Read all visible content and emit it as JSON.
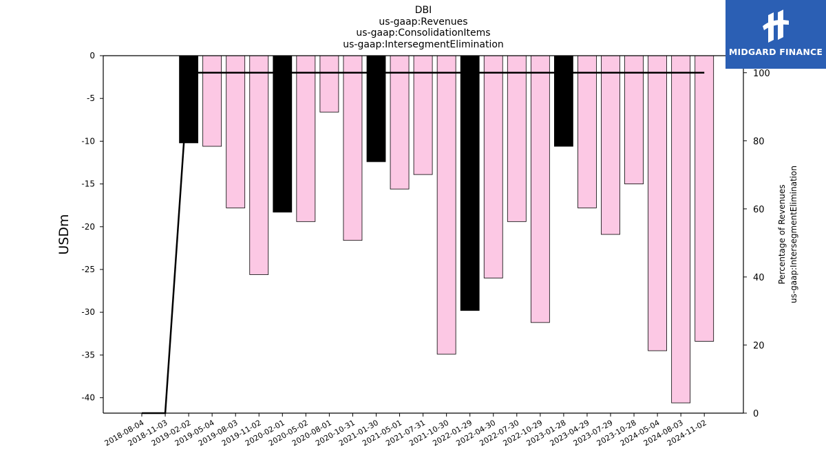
{
  "chart_data": {
    "type": "bar",
    "title_lines": [
      "DBI",
      "us-gaap:Revenues",
      "us-gaap:ConsolidationItems",
      "us-gaap:IntersegmentElimination"
    ],
    "ylabel": "USDm",
    "y2label_lines": [
      "Percentage of Revenues",
      "us-gaap:IntersegmentElimination"
    ],
    "categories": [
      "2018-08-04",
      "2018-11-03",
      "2019-02-02",
      "2019-05-04",
      "2019-08-03",
      "2019-11-02",
      "2020-02-01",
      "2020-05-02",
      "2020-08-01",
      "2020-10-31",
      "2021-01-30",
      "2021-05-01",
      "2021-07-31",
      "2021-10-30",
      "2022-01-29",
      "2022-04-30",
      "2022-07-30",
      "2022-10-29",
      "2023-01-28",
      "2023-04-29",
      "2023-07-29",
      "2023-10-28",
      "2024-05-04",
      "2024-08-03",
      "2024-11-02"
    ],
    "series": [
      {
        "values": [
          null,
          null,
          -10.2,
          -10.6,
          -17.8,
          -25.6,
          -18.3,
          -19.4,
          -6.6,
          -21.6,
          -12.4,
          -15.6,
          -13.9,
          -34.9,
          -29.8,
          -26.0,
          -19.4,
          -31.2,
          -10.6,
          -17.8,
          -20.9,
          -15.0,
          -34.5,
          -40.6,
          -33.4
        ],
        "colors": [
          "",
          "",
          "#000000",
          "#fcc8e4",
          "#fcc8e4",
          "#fcc8e4",
          "#000000",
          "#fcc8e4",
          "#fcc8e4",
          "#fcc8e4",
          "#000000",
          "#fcc8e4",
          "#fcc8e4",
          "#fcc8e4",
          "#000000",
          "#fcc8e4",
          "#fcc8e4",
          "#fcc8e4",
          "#000000",
          "#fcc8e4",
          "#fcc8e4",
          "#fcc8e4",
          "#fcc8e4",
          "#fcc8e4",
          "#fcc8e4"
        ]
      },
      {
        "axis": "right",
        "type": "line",
        "values": [
          0,
          0,
          100,
          100,
          100,
          100,
          100,
          100,
          100,
          100,
          100,
          100,
          100,
          100,
          100,
          100,
          100,
          100,
          100,
          100,
          100,
          100,
          100,
          100,
          100
        ],
        "color": "#000000"
      }
    ],
    "ylim": [
      -41.8,
      0
    ],
    "yticks": [
      0,
      -5,
      -10,
      -15,
      -20,
      -25,
      -30,
      -35,
      -40
    ],
    "y2lim": [
      0,
      105
    ],
    "y2ticks": [
      0,
      20,
      40,
      60,
      80,
      100
    ],
    "grid": false,
    "legend": "none"
  },
  "brand": {
    "name": "MIDGARD FINANCE",
    "color": "#2b5fb4"
  }
}
